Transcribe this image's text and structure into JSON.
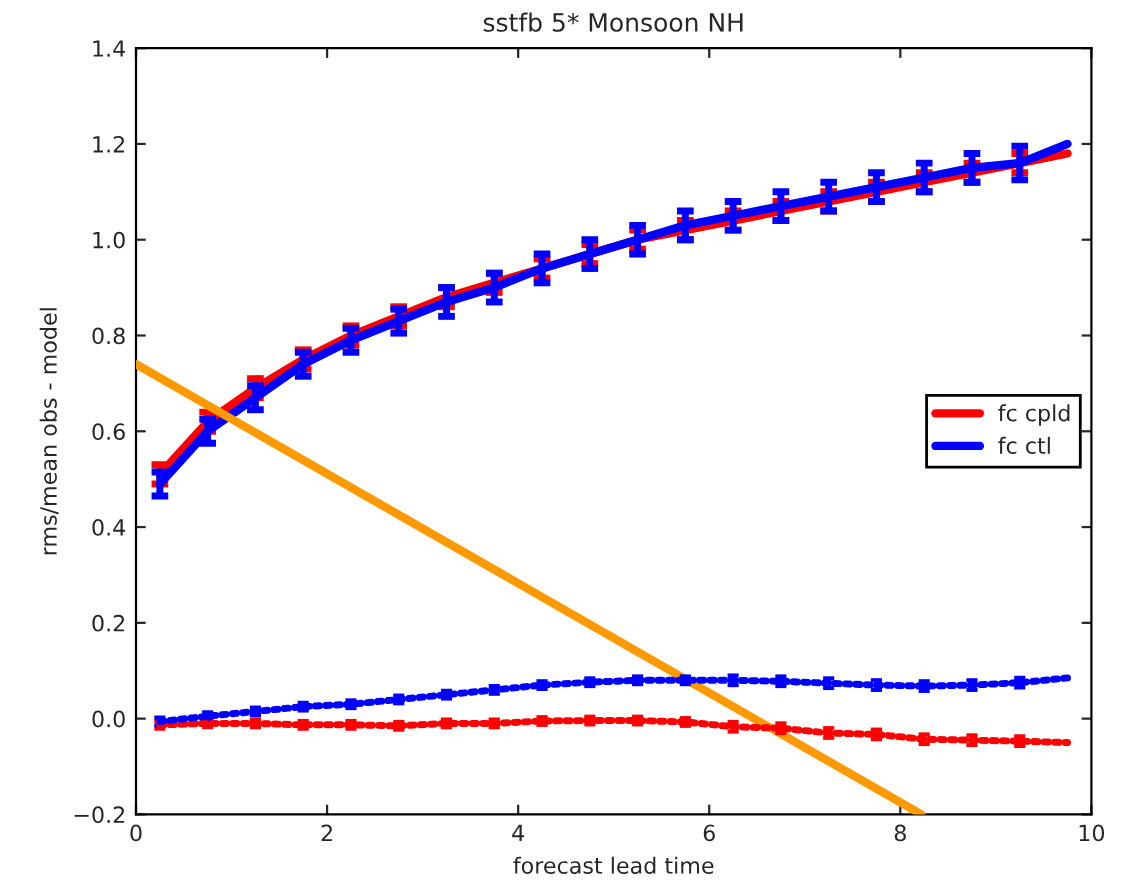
{
  "chart_data": {
    "type": "line",
    "title": "sstfb 5* Monsoon NH",
    "xlabel": "forecast lead time",
    "ylabel": "rms/mean obs - model",
    "x": [
      0.25,
      0.75,
      1.25,
      1.75,
      2.25,
      2.75,
      3.25,
      3.75,
      4.25,
      4.75,
      5.25,
      5.75,
      6.25,
      6.75,
      7.25,
      7.75,
      8.25,
      8.75,
      9.25,
      9.75
    ],
    "series": [
      {
        "name": "fc cpld",
        "color": "#ff0000",
        "line_style": "solid",
        "values": [
          0.51,
          0.62,
          0.69,
          0.75,
          0.8,
          0.84,
          0.88,
          0.91,
          0.94,
          0.97,
          1.0,
          1.02,
          1.04,
          1.06,
          1.08,
          1.1,
          1.12,
          1.14,
          1.16,
          1.18
        ],
        "errors": [
          0.02,
          0.02,
          0.02,
          0.02,
          0.02,
          0.02,
          0.02,
          0.02,
          0.02,
          0.02,
          0.02,
          0.02,
          0.02,
          0.02,
          0.02,
          0.02,
          0.02,
          0.02,
          0.02,
          null
        ]
      },
      {
        "name": "fc ctl",
        "color": "#0000ff",
        "line_style": "solid",
        "values": [
          0.49,
          0.6,
          0.67,
          0.74,
          0.79,
          0.83,
          0.87,
          0.9,
          0.94,
          0.97,
          1.0,
          1.03,
          1.05,
          1.07,
          1.09,
          1.11,
          1.13,
          1.15,
          1.16,
          1.2
        ],
        "errors": [
          0.025,
          0.025,
          0.025,
          0.025,
          0.025,
          0.025,
          0.03,
          0.03,
          0.03,
          0.03,
          0.03,
          0.03,
          0.03,
          0.03,
          0.03,
          0.03,
          0.03,
          0.03,
          0.035,
          null
        ]
      },
      {
        "color": "#ff0000",
        "line_style": "dotted",
        "values": [
          -0.013,
          -0.01,
          -0.01,
          -0.013,
          -0.013,
          -0.015,
          -0.01,
          -0.01,
          -0.005,
          -0.004,
          -0.004,
          -0.007,
          -0.017,
          -0.02,
          -0.03,
          -0.033,
          -0.043,
          -0.045,
          -0.047,
          -0.05
        ],
        "errors": [
          0.008,
          0.008,
          0.008,
          0.008,
          0.008,
          0.008,
          0.008,
          0.008,
          0.008,
          0.008,
          0.008,
          0.008,
          0.01,
          0.01,
          0.01,
          0.01,
          0.01,
          0.01,
          0.01,
          null
        ]
      },
      {
        "color": "#0000ff",
        "line_style": "dotted",
        "values": [
          -0.006,
          0.005,
          0.015,
          0.025,
          0.03,
          0.04,
          0.05,
          0.06,
          0.07,
          0.076,
          0.08,
          0.08,
          0.08,
          0.078,
          0.074,
          0.07,
          0.068,
          0.07,
          0.075,
          0.085
        ],
        "errors": [
          0.008,
          0.008,
          0.008,
          0.008,
          0.008,
          0.008,
          0.008,
          0.008,
          0.008,
          0.008,
          0.008,
          0.008,
          0.01,
          0.01,
          0.01,
          0.01,
          0.01,
          0.01,
          0.01,
          null
        ]
      },
      {
        "color": "#ff9900",
        "line_style": "solid",
        "x": [
          0,
          8.22
        ],
        "values": [
          0.74,
          -0.2
        ]
      }
    ],
    "xlim": [
      0,
      10
    ],
    "ylim": [
      -0.2,
      1.4
    ],
    "xticks": [
      0,
      2,
      4,
      6,
      8,
      10
    ],
    "yticks": [
      -0.2,
      {
        "value": 0,
        "label": "0.0"
      },
      0.2,
      0.4,
      0.6,
      0.8,
      {
        "value": 1,
        "label": "1.0"
      },
      1.2,
      1.4
    ],
    "grid": false,
    "legend": "right",
    "marker": "none"
  }
}
